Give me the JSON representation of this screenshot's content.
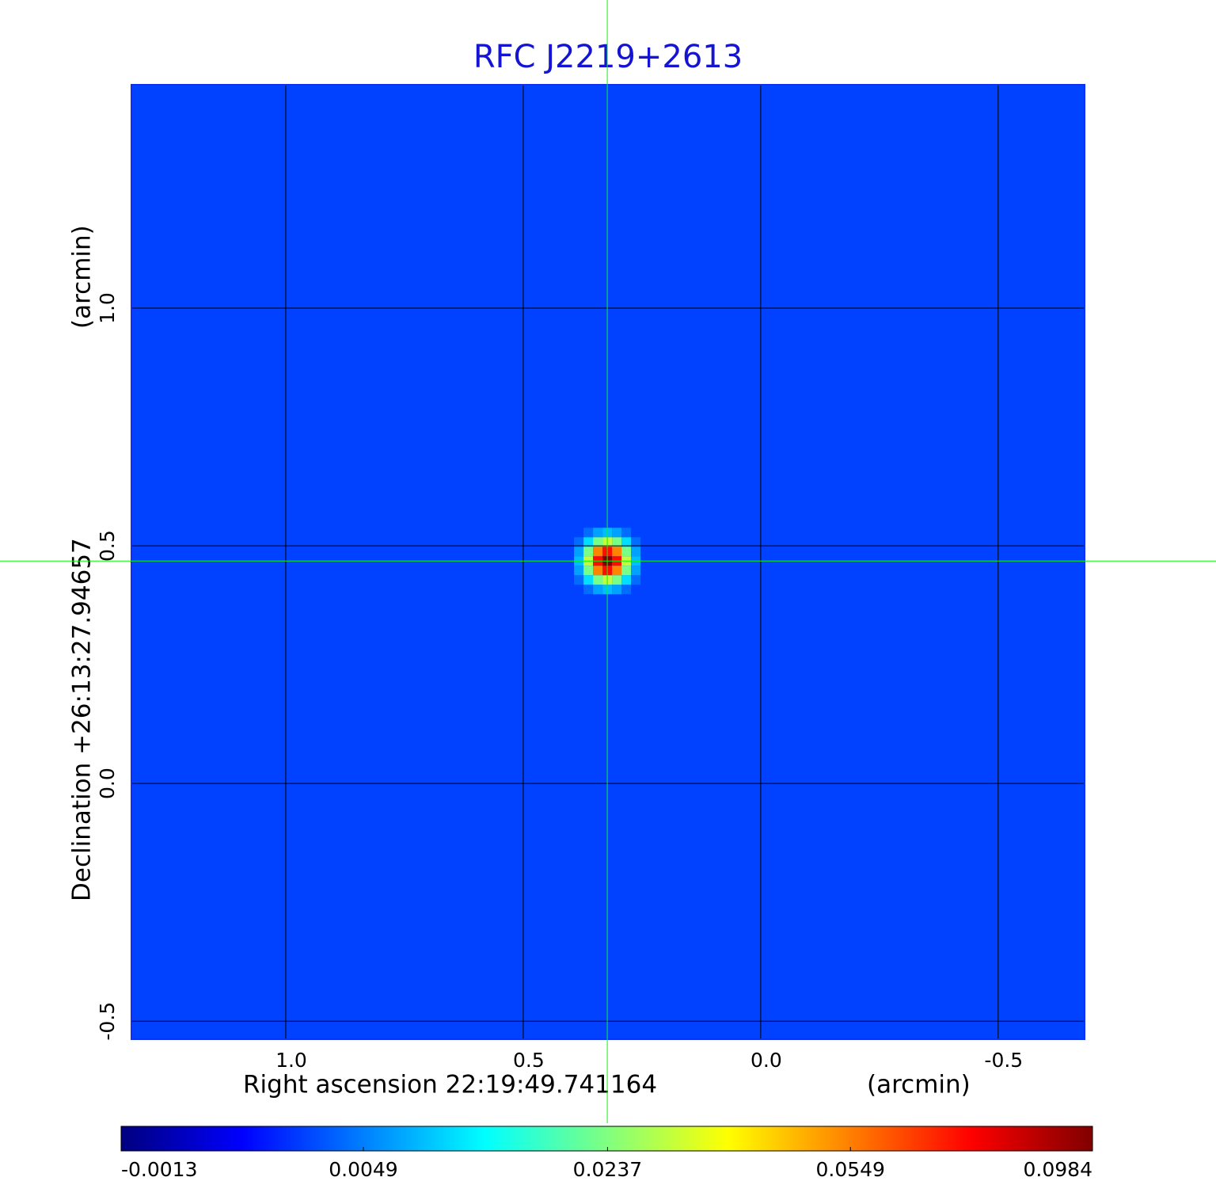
{
  "chart_data": {
    "type": "image",
    "title": "RFC J2219+2613",
    "x_label": "Right ascension  22:19:49.741164",
    "x_unit": "(arcmin)",
    "y_label": "Declination  +26:13:27.94657",
    "y_unit": "(arcmin)",
    "xlim": [
      1.325,
      -0.682
    ],
    "ylim": [
      -0.538,
      1.47
    ],
    "xticks": [
      {
        "value": 1,
        "label": "1.0"
      },
      0.5,
      {
        "value": 0,
        "label": "0.0"
      },
      -0.5
    ],
    "yticks": [
      -0.5,
      {
        "value": 0,
        "label": "0.0"
      },
      0.5,
      {
        "value": 1,
        "label": "1.0"
      }
    ],
    "grid": true,
    "colormap": "jet",
    "image": {
      "background": 0.0023,
      "source": {
        "x": 0.323,
        "y": 0.468,
        "peak": 0.0984,
        "fwhm": 0.06
      }
    },
    "crosshair_color": "#00ff00",
    "colorbar": {
      "scale": "sqrt",
      "lim": [
        -0.0013,
        0.0984
      ],
      "ticks": [
        -0.0013,
        0.0049,
        0.0237,
        0.0549,
        0.0984
      ]
    }
  }
}
